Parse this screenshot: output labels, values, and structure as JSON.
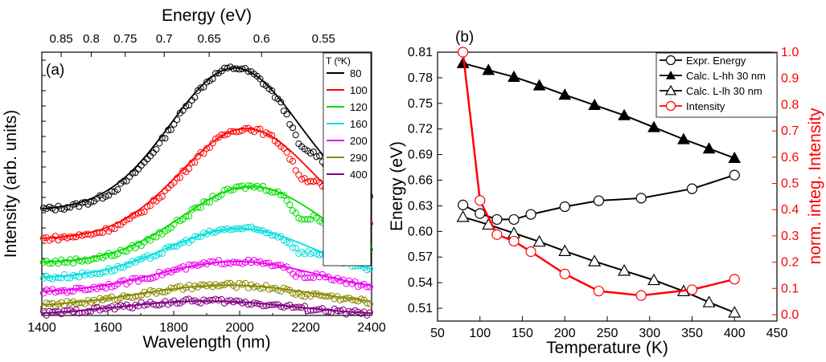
{
  "chart_data": [
    {
      "type": "scatter",
      "panel_label": "(a)",
      "xlabel": "Wavelength (nm)",
      "ylabel": "Intensity (arb. units)",
      "top_axis_label": "Energy (eV)",
      "xlim": [
        1400,
        2400
      ],
      "x_ticks": [
        1400,
        1600,
        1800,
        2000,
        2200,
        2400
      ],
      "top_ticks": [
        "0.85",
        "0.8",
        "0.75",
        "0.7",
        "0.65",
        "0.6",
        "0.55"
      ],
      "top_tick_wavelengths": [
        1458.7,
        1549.8,
        1653.1,
        1771.2,
        1907.5,
        2066.4,
        2254.3
      ],
      "ylim": [
        0,
        1.0
      ],
      "legend_title": "T (ºK)",
      "series": [
        {
          "name": "80",
          "color": "#000000",
          "base": 0.4,
          "amp": 0.54,
          "peak": 1985,
          "width": 185,
          "dip": 0.06
        },
        {
          "name": "100",
          "color": "#ff0000",
          "base": 0.29,
          "amp": 0.42,
          "peak": 2020,
          "width": 190,
          "dip": 0.05
        },
        {
          "name": "120",
          "color": "#00dd00",
          "base": 0.2,
          "amp": 0.29,
          "peak": 2035,
          "width": 200,
          "dip": 0.05
        },
        {
          "name": "160",
          "color": "#00dddd",
          "base": 0.14,
          "amp": 0.19,
          "peak": 2000,
          "width": 210,
          "dip": 0.03
        },
        {
          "name": "200",
          "color": "#ee00ee",
          "base": 0.085,
          "amp": 0.12,
          "peak": 1990,
          "width": 230,
          "dip": 0.02
        },
        {
          "name": "290",
          "color": "#888800",
          "base": 0.03,
          "amp": 0.085,
          "peak": 1965,
          "width": 260,
          "dip": 0.01
        },
        {
          "name": "400",
          "color": "#800080",
          "base": 0.0,
          "amp": 0.055,
          "peak": 1900,
          "width": 250,
          "dip": 0.0
        }
      ]
    },
    {
      "type": "line",
      "panel_label": "(b)",
      "xlabel": "Temperature (K)",
      "ylabel": "Energy (eV)",
      "y2label": "norm. integ. Intensity",
      "xlim": [
        50,
        450
      ],
      "x_ticks": [
        50,
        100,
        150,
        200,
        250,
        300,
        350,
        400,
        450
      ],
      "ylim": [
        0.495,
        0.81
      ],
      "y_ticks": [
        0.51,
        0.54,
        0.57,
        0.6,
        0.63,
        0.66,
        0.69,
        0.72,
        0.75,
        0.78,
        0.81
      ],
      "y2lim": [
        0,
        1.0
      ],
      "y2_ticks": [
        0.0,
        0.1,
        0.2,
        0.3,
        0.4,
        0.5,
        0.6,
        0.7,
        0.8,
        0.9,
        1.0
      ],
      "series": [
        {
          "name": "Expr. Energy",
          "marker": "circle-open",
          "color": "#000000",
          "axis": "left",
          "x": [
            80,
            100,
            120,
            140,
            160,
            200,
            240,
            290,
            350,
            400
          ],
          "y": [
            0.631,
            0.621,
            0.614,
            0.614,
            0.62,
            0.629,
            0.636,
            0.639,
            0.65,
            0.666
          ]
        },
        {
          "name": "Calc. L-hh 30 nm",
          "marker": "triangle-filled",
          "color": "#000000",
          "axis": "left",
          "x": [
            80,
            110,
            140,
            170,
            200,
            235,
            270,
            305,
            340,
            370,
            400
          ],
          "y": [
            0.797,
            0.789,
            0.781,
            0.771,
            0.76,
            0.748,
            0.736,
            0.722,
            0.708,
            0.697,
            0.686
          ]
        },
        {
          "name": "Calc. L-lh 30 nm",
          "marker": "triangle-open",
          "color": "#000000",
          "axis": "left",
          "x": [
            80,
            110,
            140,
            170,
            200,
            235,
            270,
            305,
            340,
            370,
            400
          ],
          "y": [
            0.617,
            0.608,
            0.598,
            0.588,
            0.577,
            0.565,
            0.554,
            0.543,
            0.53,
            0.517,
            0.505
          ]
        },
        {
          "name": "Intensity",
          "marker": "circle-open",
          "color": "#ff0000",
          "axis": "right",
          "x": [
            80,
            100,
            120,
            140,
            160,
            200,
            240,
            290,
            350,
            400
          ],
          "y": [
            1.0,
            0.435,
            0.305,
            0.28,
            0.24,
            0.155,
            0.09,
            0.073,
            0.095,
            0.135
          ]
        }
      ]
    }
  ]
}
